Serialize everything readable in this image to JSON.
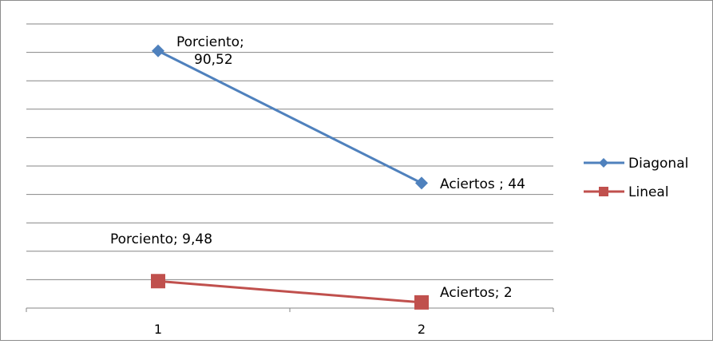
{
  "chart_data": {
    "type": "line",
    "categories": [
      "1",
      "2"
    ],
    "ylim": [
      0,
      100
    ],
    "grid": true,
    "legend_position": "right",
    "series": [
      {
        "name": "Diagonal",
        "color": "#4F81BD",
        "marker": "diamond",
        "values": [
          90.52,
          44
        ],
        "labels": [
          [
            "Porciento;",
            "90,52"
          ],
          [
            "Aciertos ; 44"
          ]
        ]
      },
      {
        "name": "Lineal",
        "color": "#C0504D",
        "marker": "square",
        "values": [
          9.48,
          2
        ],
        "labels": [
          [
            "Porciento; 9,48"
          ],
          [
            "Aciertos; 2"
          ]
        ]
      }
    ]
  }
}
